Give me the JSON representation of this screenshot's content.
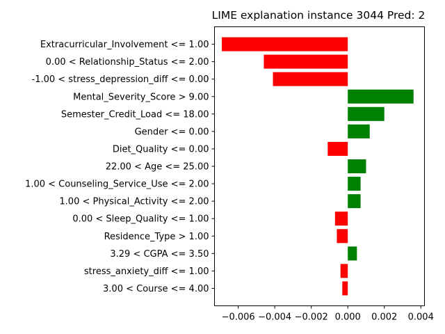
{
  "chart_data": {
    "type": "bar",
    "orientation": "horizontal",
    "title": "LIME explanation instance 3044 Pred: 2",
    "xlabel": "",
    "ylabel": "",
    "xlim": [
      -0.0073,
      0.0042
    ],
    "grid": false,
    "legend": "none",
    "positive_color": "#008000",
    "negative_color": "#ff0000",
    "categories": [
      "Extracurricular_Involvement <= 1.00",
      "0.00 < Relationship_Status <= 2.00",
      "-1.00 < stress_depression_diff <= 0.00",
      "Mental_Severity_Score > 9.00",
      "Semester_Credit_Load <= 18.00",
      "Gender <= 0.00",
      "Diet_Quality <= 0.00",
      "22.00 < Age <= 25.00",
      "1.00 < Counseling_Service_Use <= 2.00",
      "1.00 < Physical_Activity <= 2.00",
      "0.00 < Sleep_Quality <= 1.00",
      "Residence_Type > 1.00",
      "3.29 < CGPA <= 3.50",
      "stress_anxiety_diff <= 1.00",
      "3.00 < Course <= 4.00"
    ],
    "values": [
      -0.0069,
      -0.0046,
      -0.0041,
      0.0036,
      0.002,
      0.0012,
      -0.0011,
      0.001,
      0.0007,
      0.0007,
      -0.0007,
      -0.0006,
      0.0005,
      -0.0004,
      -0.0003
    ],
    "xticks": [
      -0.006,
      -0.004,
      -0.002,
      0.0,
      0.002,
      0.004
    ],
    "xtick_labels": [
      "−0.006",
      "−0.004",
      "−0.002",
      "0.000",
      "0.002",
      "0.004"
    ]
  }
}
